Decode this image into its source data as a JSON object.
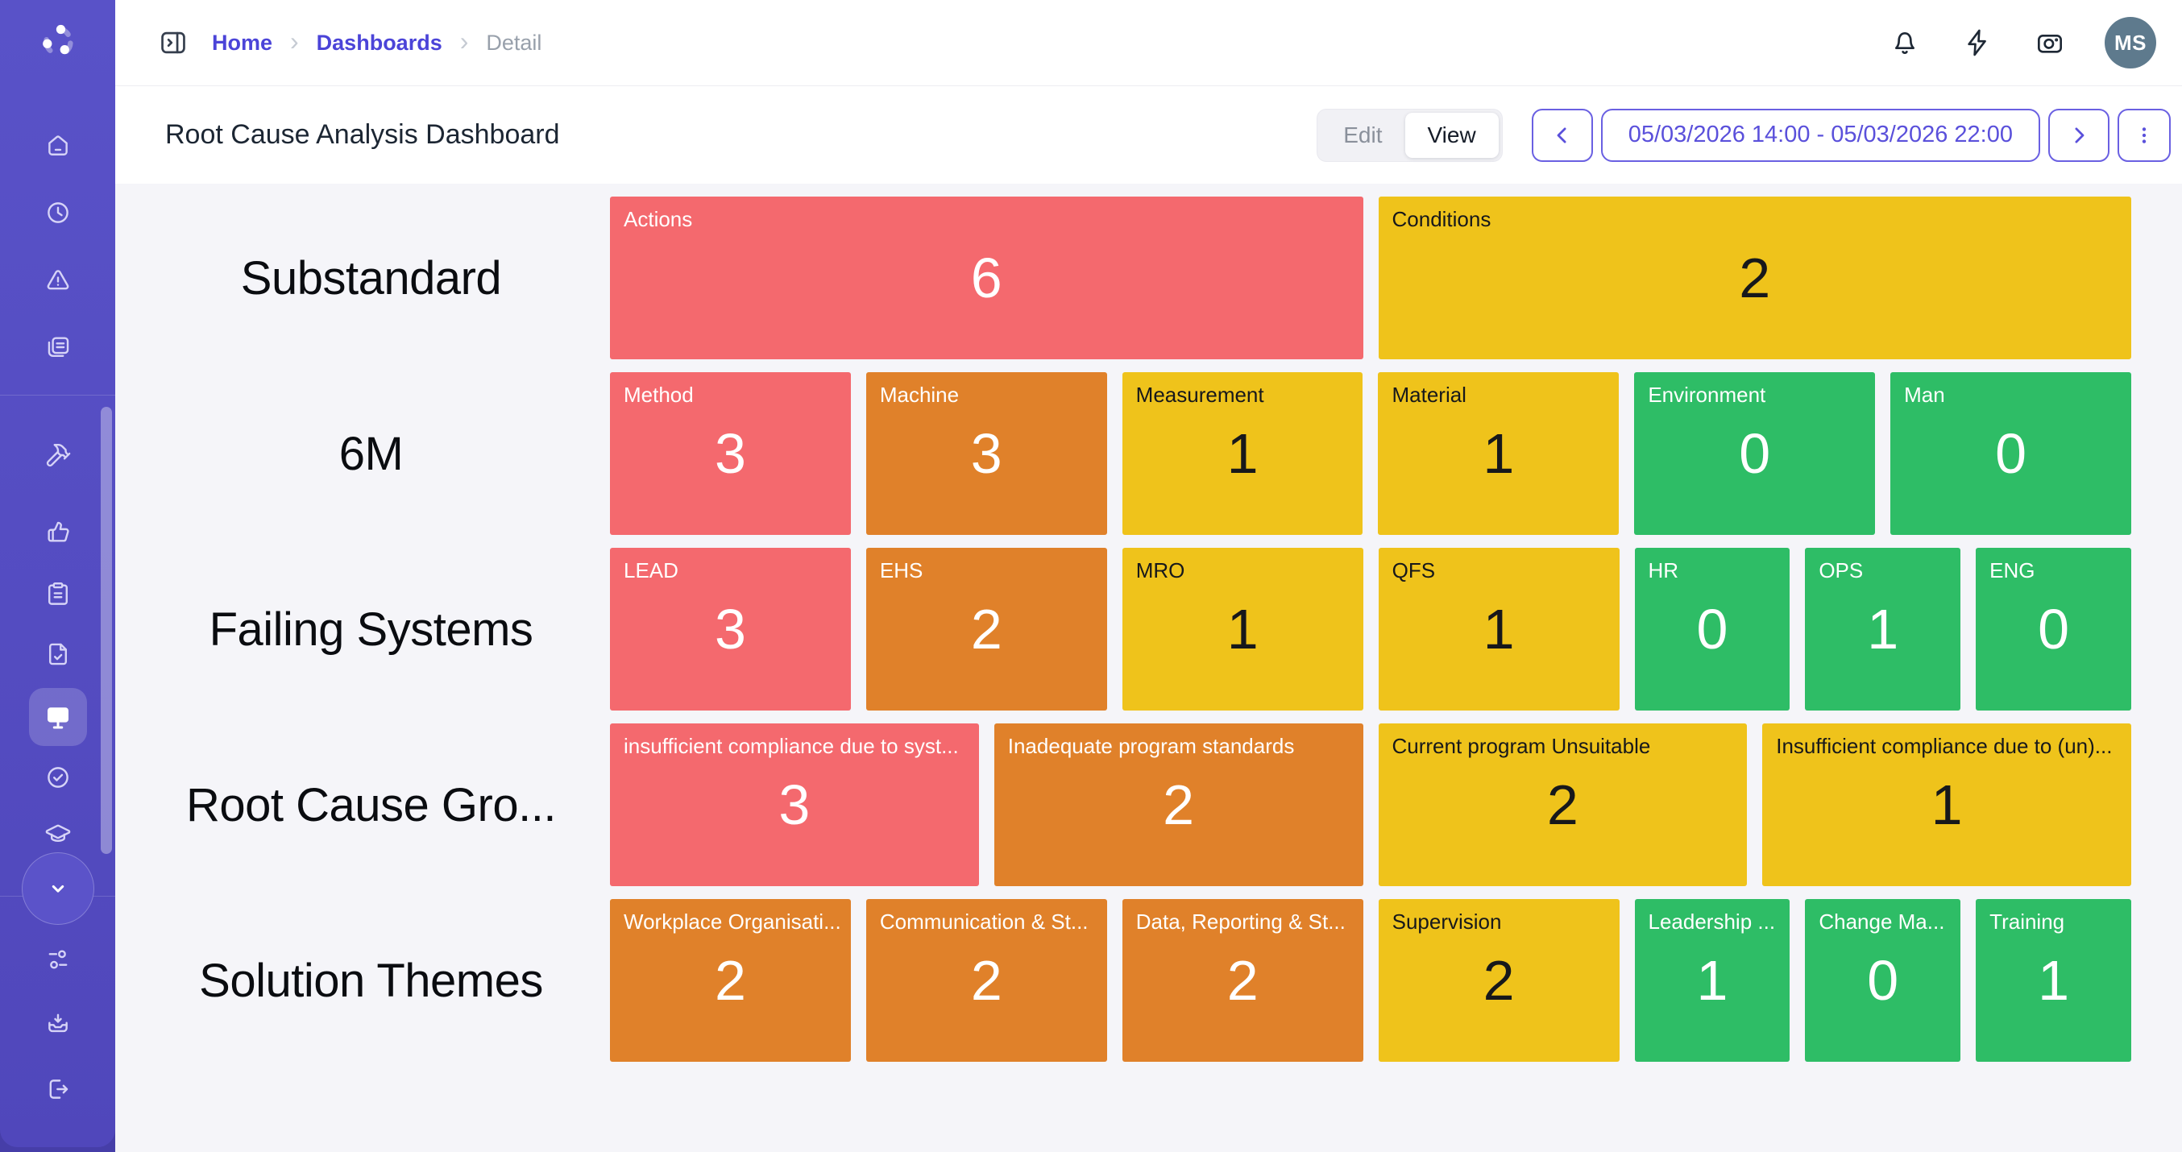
{
  "colors": {
    "sidebar": "#5952C8",
    "sidebar_strip": "#463EA8",
    "accent": "#5A50DB",
    "accent_border": "#6A60E2",
    "breadcrumb_link": "#4B44D8",
    "title_text": "#1C2633",
    "avatar_bg": "#5E7A8D",
    "content_bg": "#F5F5F9",
    "tile": {
      "red": "#F4696E",
      "orange": "#E0812A",
      "yellow": "#EFC31B",
      "green": "#2EBD66"
    },
    "tile_text_light": "#FFFFFF",
    "tile_text_dark": "#17181B"
  },
  "sidebar": {
    "logo": "spinner-logo-icon",
    "nav_top": [
      "home-icon",
      "history-clock-icon",
      "alert-triangle-icon",
      "documents-icon"
    ],
    "nav_middle": [
      "tools-icon",
      "thumbs-up-icon",
      "clipboard-icon",
      "file-check-icon",
      "presentation-monitor-icon",
      "check-circle-icon",
      "graduation-cap-icon"
    ],
    "active_item": "presentation-monitor-icon",
    "collapse_button": "chevron-down-icon",
    "nav_bottom": [
      "sliders-icon",
      "inbox-in-icon",
      "logout-icon"
    ]
  },
  "breadcrumb": {
    "toggle_icon": "panel-toggle-icon",
    "items": [
      {
        "label": "Home",
        "type": "link"
      },
      {
        "label": "Dashboards",
        "type": "link"
      },
      {
        "label": "Detail",
        "type": "current"
      }
    ]
  },
  "topbar_actions": {
    "icons": [
      "bell-icon",
      "zap-icon",
      "camera-icon"
    ],
    "avatar_initials": "MS"
  },
  "titlebar": {
    "title": "Root Cause Analysis Dashboard",
    "segmented": {
      "options": [
        "Edit",
        "View"
      ],
      "selected": "View"
    },
    "date_range": "05/03/2026 14:00 - 05/03/2026 22:00",
    "prev_icon": "chevron-left-icon",
    "next_icon": "chevron-right-icon",
    "more_icon": "kebab-menu-icon"
  },
  "treemap": {
    "rows": [
      {
        "label": "Substandard",
        "tiles": [
          {
            "label": "Actions",
            "value": 6,
            "color": "red"
          },
          {
            "label": "Conditions",
            "value": 2,
            "color": "yellow"
          }
        ]
      },
      {
        "label": "6M",
        "tiles": [
          {
            "label": "Method",
            "value": 3,
            "color": "red"
          },
          {
            "label": "Machine",
            "value": 3,
            "color": "orange"
          },
          {
            "label": "Measurement",
            "value": 1,
            "color": "yellow"
          },
          {
            "label": "Material",
            "value": 1,
            "color": "yellow"
          },
          {
            "label": "Environment",
            "value": 0,
            "color": "green"
          },
          {
            "label": "Man",
            "value": 0,
            "color": "green"
          }
        ]
      },
      {
        "label": "Failing Systems",
        "tiles": [
          {
            "label": "LEAD",
            "value": 3,
            "color": "red"
          },
          {
            "label": "EHS",
            "value": 2,
            "color": "orange"
          },
          {
            "label": "MRO",
            "value": 1,
            "color": "yellow"
          },
          {
            "label": "QFS",
            "value": 1,
            "color": "yellow"
          },
          {
            "label": "HR",
            "value": 0,
            "color": "green"
          },
          {
            "label": "OPS",
            "value": 1,
            "color": "green"
          },
          {
            "label": "ENG",
            "value": 0,
            "color": "green"
          }
        ]
      },
      {
        "label": "Root Cause Gro...",
        "tiles": [
          {
            "label": "insufficient compliance due to syst...",
            "value": 3,
            "color": "red"
          },
          {
            "label": "Inadequate program standards",
            "value": 2,
            "color": "orange"
          },
          {
            "label": "Current program Unsuitable",
            "value": 2,
            "color": "yellow"
          },
          {
            "label": "Insufficient compliance due to (un)...",
            "value": 1,
            "color": "yellow"
          }
        ]
      },
      {
        "label": "Solution Themes",
        "tiles": [
          {
            "label": "Workplace Organisati...",
            "value": 2,
            "color": "orange"
          },
          {
            "label": "Communication & St...",
            "value": 2,
            "color": "orange"
          },
          {
            "label": "Data, Reporting & St...",
            "value": 2,
            "color": "orange"
          },
          {
            "label": "Supervision",
            "value": 2,
            "color": "yellow"
          },
          {
            "label": "Leadership ...",
            "value": 1,
            "color": "green"
          },
          {
            "label": "Change Ma...",
            "value": 0,
            "color": "green"
          },
          {
            "label": "Training",
            "value": 1,
            "color": "green"
          }
        ]
      }
    ]
  }
}
